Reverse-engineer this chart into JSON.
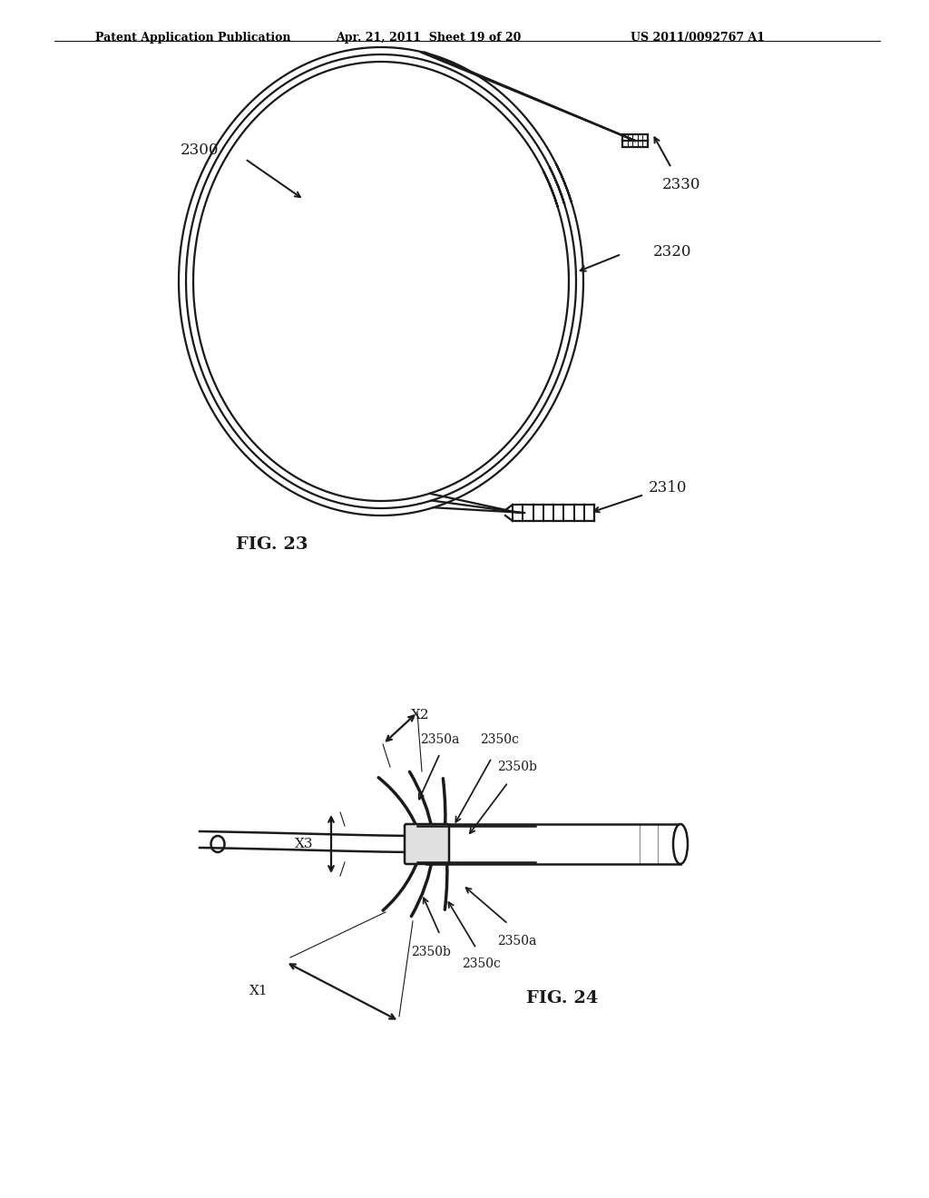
{
  "bg_color": "#ffffff",
  "header_text": "Patent Application Publication",
  "header_date": "Apr. 21, 2011  Sheet 19 of 20",
  "header_patent": "US 2011/0092767 A1",
  "fig23_label": "FIG. 23",
  "fig24_label": "FIG. 24",
  "label_2300": "2300",
  "label_2310": "2310",
  "label_2320": "2320",
  "label_2330": "2330",
  "label_2350a_top": "2350a",
  "label_2350b_top": "2350b",
  "label_2350c_top": "2350c",
  "label_2350a_bot": "2350a",
  "label_2350b_bot": "2350b",
  "label_2350c_bot": "2350c",
  "label_X1": "X1",
  "label_X2": "X2",
  "label_X3": "X3",
  "line_color": "#1a1a1a",
  "line_width": 1.8,
  "thick_line": 2.5
}
